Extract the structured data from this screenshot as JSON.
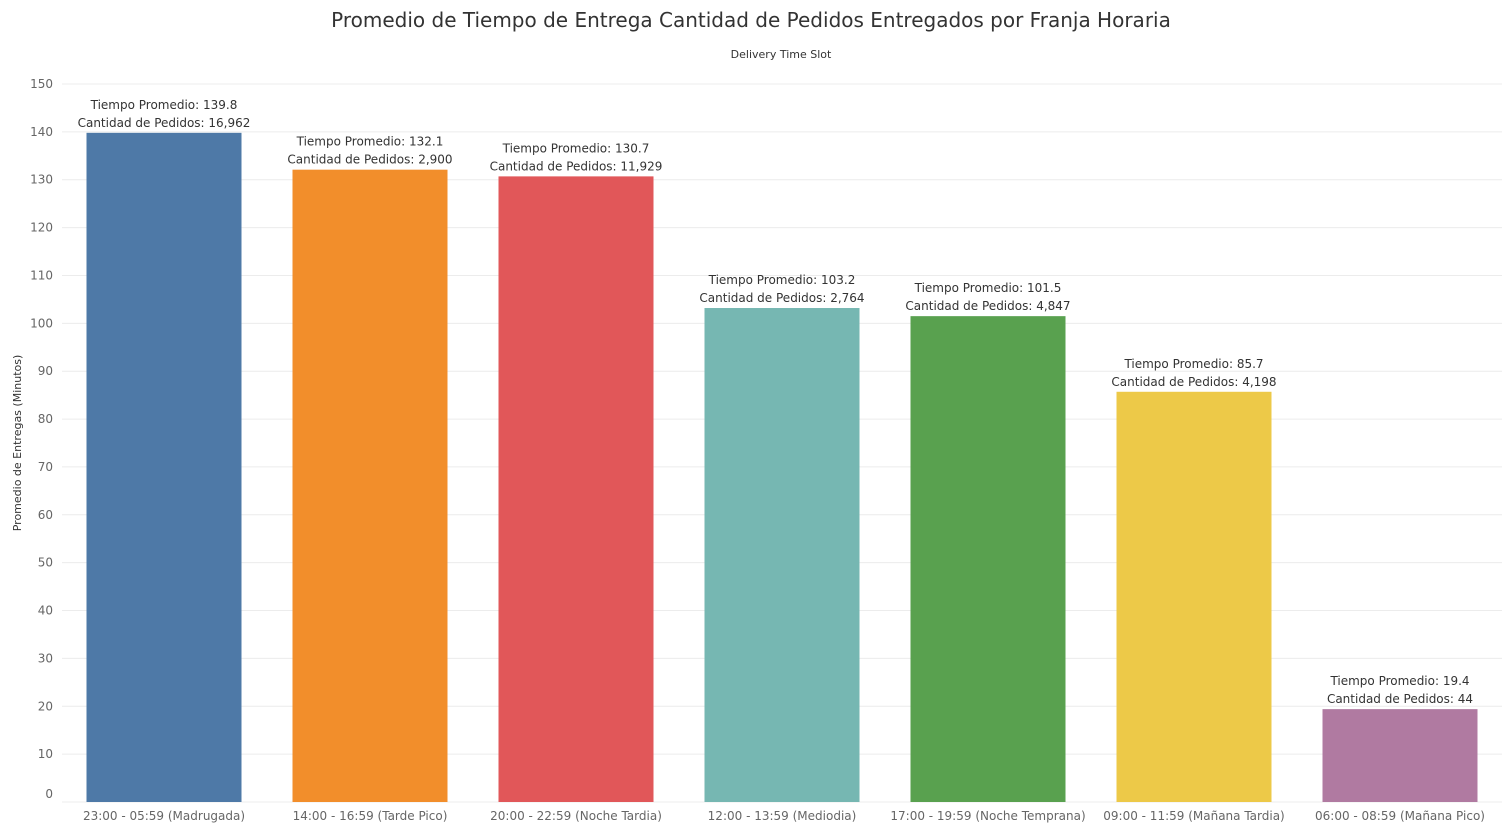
{
  "chart_data": {
    "type": "bar",
    "title": "Promedio de Tiempo de Entrega Cantidad de Pedidos Entregados por Franja Horaria",
    "subtitle": "Delivery Time Slot",
    "xlabel": "",
    "ylabel": "Promedio de Entregas (Minutos)",
    "ylim": [
      0,
      150
    ],
    "yticks": [
      0,
      10,
      20,
      30,
      40,
      50,
      60,
      70,
      80,
      90,
      100,
      110,
      120,
      130,
      140,
      150
    ],
    "grid": "horizontal",
    "categories": [
      "23:00 - 05:59 (Madrugada)",
      "14:00 - 16:59 (Tarde Pico)",
      "20:00 - 22:59 (Noche Tardia)",
      "12:00 - 13:59 (Mediodia)",
      "17:00 - 19:59 (Noche Temprana)",
      "09:00 - 11:59 (Mañana Tardia)",
      "06:00 - 08:59 (Mañana Pico)"
    ],
    "values": [
      139.8,
      132.1,
      130.7,
      103.2,
      101.5,
      85.7,
      19.4
    ],
    "labels_line1": [
      "Tiempo Promedio: 139.8",
      "Tiempo Promedio: 132.1",
      "Tiempo Promedio: 130.7",
      "Tiempo Promedio: 103.2",
      "Tiempo Promedio: 101.5",
      "Tiempo Promedio: 85.7",
      "Tiempo Promedio: 19.4"
    ],
    "labels_line2": [
      "Cantidad de Pedidos: 16,962",
      "Cantidad de Pedidos: 2,900",
      "Cantidad de Pedidos: 11,929",
      "Cantidad de Pedidos: 2,764",
      "Cantidad de Pedidos: 4,847",
      "Cantidad de Pedidos: 4,198",
      "Cantidad de Pedidos: 44"
    ],
    "colors": [
      "#4e79a7",
      "#f28e2b",
      "#e15759",
      "#76b7b2",
      "#59a14f",
      "#edc948",
      "#b07aa1"
    ]
  }
}
